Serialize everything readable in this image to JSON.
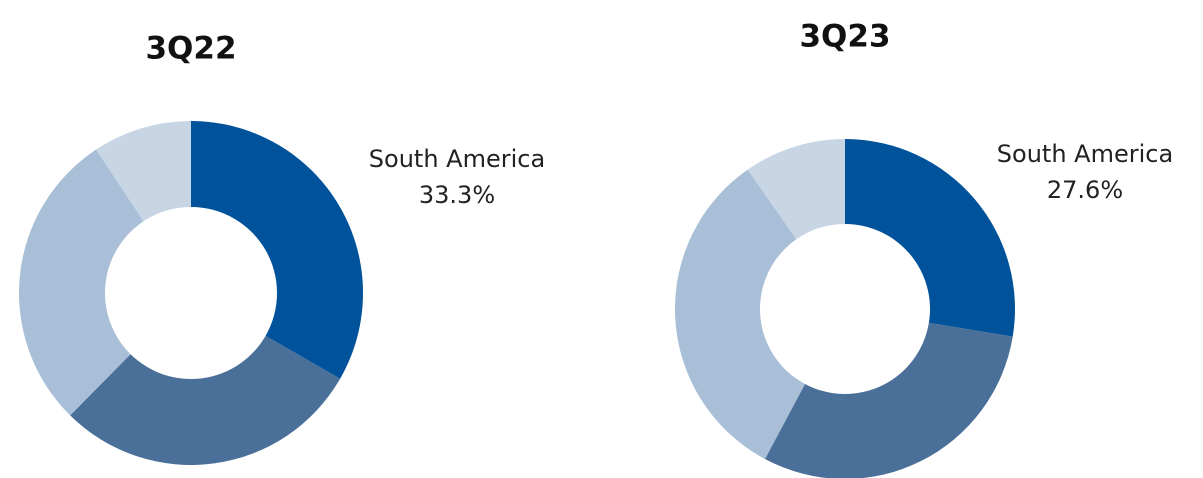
{
  "chart_data": [
    {
      "type": "donut",
      "title": "3Q22",
      "categories": [
        "South America",
        null,
        null,
        null
      ],
      "values": [
        33.3,
        29.1,
        28.3,
        9.3
      ],
      "value_labels": [
        "33.3%",
        null,
        null,
        null
      ],
      "colors": [
        "#00529b",
        "#4a7099",
        "#a9bfd7",
        "#c8d5e5"
      ]
    },
    {
      "type": "donut",
      "title": "3Q23",
      "categories": [
        "South America",
        null,
        null,
        null
      ],
      "values": [
        27.6,
        30.2,
        32.5,
        9.7
      ],
      "value_labels": [
        "27.6%",
        null,
        null,
        null
      ],
      "colors": [
        "#00529b",
        "#4a7099",
        "#a9bfd7",
        "#c8d5e5"
      ]
    }
  ]
}
